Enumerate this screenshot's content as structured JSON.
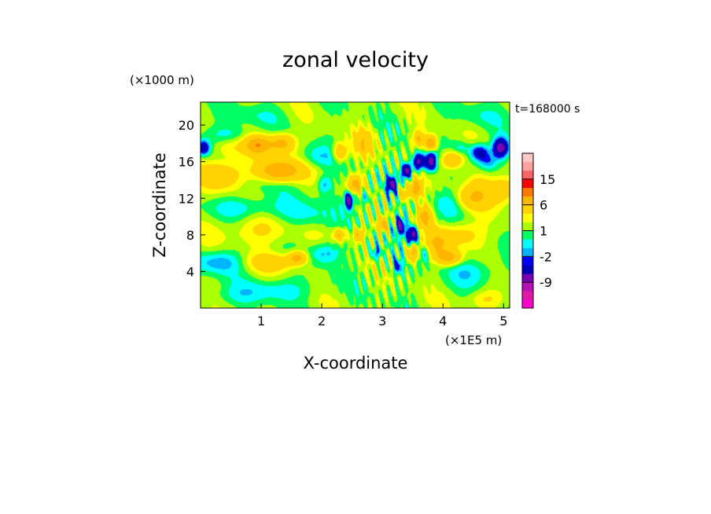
{
  "chart_data": {
    "type": "heatmap",
    "title": "zonal velocity",
    "xlabel": "X-coordinate",
    "ylabel": "Z-coordinate",
    "x_unit": "(×1E5 m)",
    "y_unit": "(×1000 m)",
    "time_label": "t=168000 s",
    "xlim": [
      0,
      5.1
    ],
    "ylim": [
      0,
      22.5
    ],
    "x_ticks": [
      "1",
      "2",
      "3",
      "4",
      "5"
    ],
    "y_ticks": [
      "4",
      "8",
      "12",
      "16",
      "20"
    ],
    "background_level_color": "#ffff00",
    "colorbar": {
      "tick_labels": [
        "15",
        "6",
        "1",
        "-2",
        "-9"
      ],
      "tick_values": [
        15,
        6,
        1,
        -2,
        -9
      ],
      "levels": [
        -15,
        -12,
        -9,
        -6,
        -3,
        -2,
        -1,
        0,
        1,
        2,
        3,
        6,
        9,
        12,
        15,
        18
      ],
      "colors": [
        "#ff00cc",
        "#dd1aa8",
        "#b412b4",
        "#7a00b4",
        "#0000b4",
        "#0000ff",
        "#00b4ff",
        "#00ffff",
        "#00ff64",
        "#aaff00",
        "#ffff00",
        "#ffd200",
        "#ffb400",
        "#ff7800",
        "#ff0000",
        "#ff6464",
        "#ffa0a0",
        "#ffc8c8"
      ]
    },
    "features": [
      {
        "x": 0.05,
        "z": 17.5,
        "sx": 0.1,
        "sz": 0.8,
        "value": -6
      },
      {
        "x": 0.45,
        "z": 17.5,
        "sx": 0.25,
        "sz": 1.2,
        "value": 2
      },
      {
        "x": 0.5,
        "z": 19.0,
        "sx": 0.35,
        "sz": 1.0,
        "value": -2
      },
      {
        "x": 0.35,
        "z": 14.5,
        "sx": 0.35,
        "sz": 1.6,
        "value": 4
      },
      {
        "x": 0.95,
        "z": 17.8,
        "sx": 0.22,
        "sz": 1.0,
        "value": 7
      },
      {
        "x": 1.35,
        "z": 18.0,
        "sx": 0.2,
        "sz": 1.0,
        "value": 6
      },
      {
        "x": 1.3,
        "z": 15.0,
        "sx": 0.35,
        "sz": 1.2,
        "value": 8
      },
      {
        "x": 1.0,
        "z": 13.5,
        "sx": 0.45,
        "sz": 1.0,
        "value": -1
      },
      {
        "x": 0.8,
        "z": 11.0,
        "sx": 0.6,
        "sz": 1.2,
        "value": -2
      },
      {
        "x": 1.0,
        "z": 8.5,
        "sx": 0.7,
        "sz": 1.6,
        "value": 2
      },
      {
        "x": 1.7,
        "z": 10.0,
        "sx": 0.45,
        "sz": 1.6,
        "value": -2
      },
      {
        "x": 0.3,
        "z": 5.0,
        "sx": 0.4,
        "sz": 1.2,
        "value": -3
      },
      {
        "x": 1.2,
        "z": 5.0,
        "sx": 0.45,
        "sz": 1.0,
        "value": 3
      },
      {
        "x": 1.25,
        "z": 2.0,
        "sx": 0.6,
        "sz": 1.2,
        "value": -2
      },
      {
        "x": 0.5,
        "z": 1.2,
        "sx": 0.45,
        "sz": 1.0,
        "value": -1
      },
      {
        "x": 1.6,
        "z": 5.5,
        "sx": 0.15,
        "sz": 0.7,
        "value": 6
      },
      {
        "x": 2.05,
        "z": 6.0,
        "sx": 0.25,
        "sz": 1.2,
        "value": -3
      },
      {
        "x": 1.95,
        "z": 16.5,
        "sx": 0.3,
        "sz": 1.2,
        "value": -2
      },
      {
        "x": 2.05,
        "z": 13.5,
        "sx": 0.12,
        "sz": 1.0,
        "value": -3
      },
      {
        "x": 2.45,
        "z": 11.8,
        "sx": 0.07,
        "sz": 0.9,
        "value": -9
      },
      {
        "x": 2.55,
        "z": 13.5,
        "sx": 0.12,
        "sz": 1.0,
        "value": 6
      },
      {
        "x": 2.3,
        "z": 17.0,
        "sx": 0.12,
        "sz": 1.0,
        "value": 5
      },
      {
        "x": 2.7,
        "z": 18.0,
        "sx": 0.15,
        "sz": 1.5,
        "value": 4
      },
      {
        "x": 2.7,
        "z": 12.0,
        "sx": 0.1,
        "sz": 0.8,
        "value": -3
      },
      {
        "x": 2.6,
        "z": 8.0,
        "sx": 0.1,
        "sz": 0.8,
        "value": 5
      },
      {
        "x": 2.3,
        "z": 8.0,
        "sx": 0.1,
        "sz": 0.7,
        "value": 5
      },
      {
        "x": 2.9,
        "z": 6.0,
        "sx": 0.08,
        "sz": 0.8,
        "value": -4
      },
      {
        "x": 3.25,
        "z": 4.5,
        "sx": 0.08,
        "sz": 0.8,
        "value": -4
      },
      {
        "x": 3.0,
        "z": 9.0,
        "sx": 0.08,
        "sz": 0.8,
        "value": 6
      },
      {
        "x": 3.15,
        "z": 13.5,
        "sx": 0.08,
        "sz": 0.8,
        "value": -8
      },
      {
        "x": 3.4,
        "z": 15.0,
        "sx": 0.08,
        "sz": 0.8,
        "value": -9
      },
      {
        "x": 3.6,
        "z": 16.0,
        "sx": 0.09,
        "sz": 0.9,
        "value": -9
      },
      {
        "x": 3.8,
        "z": 16.0,
        "sx": 0.09,
        "sz": 1.0,
        "value": -9
      },
      {
        "x": 3.8,
        "z": 18.0,
        "sx": 0.09,
        "sz": 0.8,
        "value": 8
      },
      {
        "x": 3.6,
        "z": 18.5,
        "sx": 0.09,
        "sz": 0.8,
        "value": 5
      },
      {
        "x": 3.55,
        "z": 13.0,
        "sx": 0.1,
        "sz": 1.0,
        "value": 7
      },
      {
        "x": 3.35,
        "z": 12.5,
        "sx": 0.08,
        "sz": 0.8,
        "value": 5
      },
      {
        "x": 3.3,
        "z": 9.0,
        "sx": 0.08,
        "sz": 0.9,
        "value": -8
      },
      {
        "x": 3.5,
        "z": 8.0,
        "sx": 0.09,
        "sz": 0.9,
        "value": -9
      },
      {
        "x": 3.7,
        "z": 10.0,
        "sx": 0.12,
        "sz": 1.2,
        "value": 6
      },
      {
        "x": 3.5,
        "z": 6.0,
        "sx": 0.1,
        "sz": 1.0,
        "value": 6
      },
      {
        "x": 3.7,
        "z": 6.0,
        "sx": 0.1,
        "sz": 1.0,
        "value": -3
      },
      {
        "x": 3.9,
        "z": 7.0,
        "sx": 0.2,
        "sz": 1.4,
        "value": 4
      },
      {
        "x": 4.1,
        "z": 11.5,
        "sx": 0.25,
        "sz": 1.5,
        "value": -2
      },
      {
        "x": 4.3,
        "z": 8.0,
        "sx": 0.35,
        "sz": 1.4,
        "value": 3
      },
      {
        "x": 4.1,
        "z": 5.5,
        "sx": 0.2,
        "sz": 0.8,
        "value": 6
      },
      {
        "x": 4.5,
        "z": 4.0,
        "sx": 0.45,
        "sz": 1.5,
        "value": -2
      },
      {
        "x": 4.15,
        "z": 16.2,
        "sx": 0.18,
        "sz": 1.0,
        "value": 5
      },
      {
        "x": 4.3,
        "z": 17.5,
        "sx": 0.15,
        "sz": 0.8,
        "value": -2
      },
      {
        "x": 4.6,
        "z": 17.0,
        "sx": 0.15,
        "sz": 0.9,
        "value": -6
      },
      {
        "x": 4.75,
        "z": 16.0,
        "sx": 0.15,
        "sz": 0.9,
        "value": -3
      },
      {
        "x": 4.95,
        "z": 17.5,
        "sx": 0.12,
        "sz": 1.0,
        "value": -9
      },
      {
        "x": 5.0,
        "z": 13.0,
        "sx": 0.25,
        "sz": 1.5,
        "value": 4
      },
      {
        "x": 4.6,
        "z": 13.5,
        "sx": 0.2,
        "sz": 1.2,
        "value": 2
      },
      {
        "x": 4.5,
        "z": 12.0,
        "sx": 0.3,
        "sz": 1.2,
        "value": 4
      },
      {
        "x": 4.6,
        "z": 21.0,
        "sx": 0.4,
        "sz": 1.2,
        "value": -1
      },
      {
        "x": 0.8,
        "z": 21.0,
        "sx": 0.5,
        "sz": 1.0,
        "value": -1
      },
      {
        "x": 4.7,
        "z": 1.0,
        "sx": 0.3,
        "sz": 1.0,
        "value": 2
      }
    ]
  }
}
